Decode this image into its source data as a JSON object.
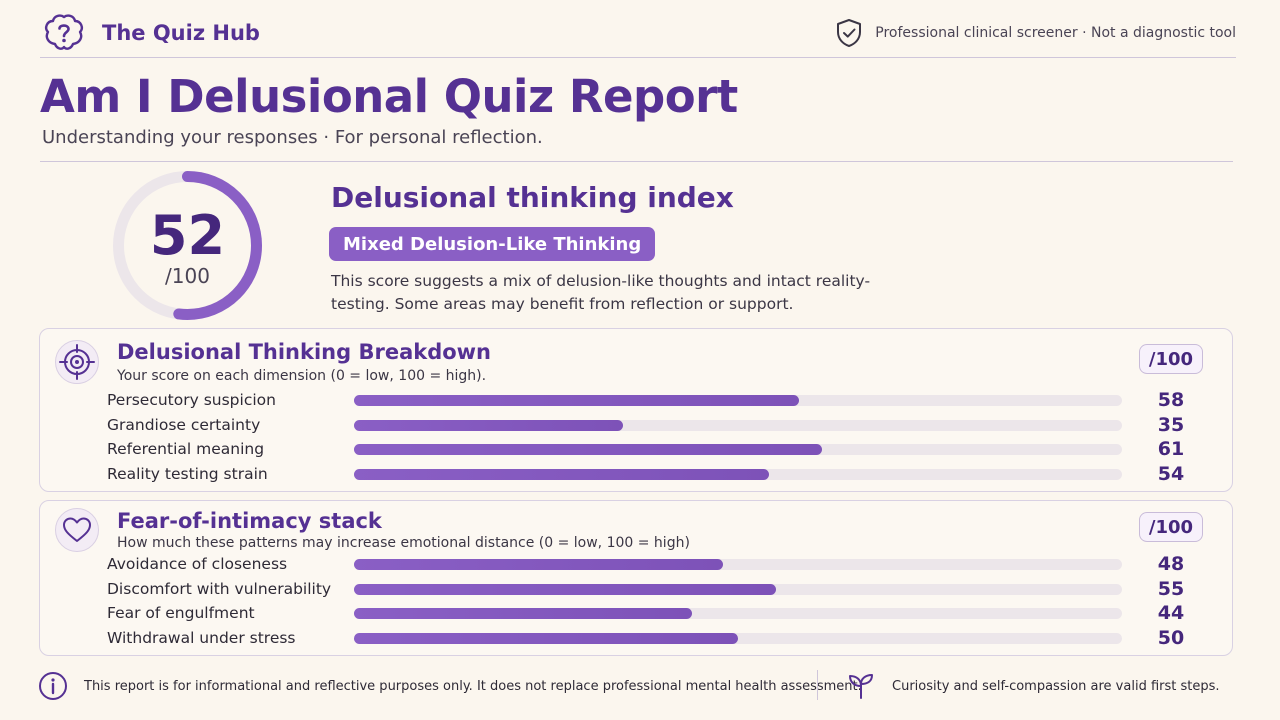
{
  "header": {
    "brand_name": "The Quiz Hub",
    "brand_icon": "brain-question-icon",
    "disclaimer": "Professional clinical screener · Not a diagnostic tool",
    "disclaimer_icon": "shield-check-icon"
  },
  "page": {
    "title": "Am I Delusional Quiz Report",
    "subtitle": "Understanding your responses · For personal reflection."
  },
  "summary": {
    "score": 52,
    "score_display": "52",
    "max_display": "/100",
    "index_title": "Delusional thinking index",
    "badge": "Mixed Delusion-Like Thinking",
    "description": "This score suggests a mix of delusion-like thoughts and intact reality-testing. Some areas may benefit from reflection or support."
  },
  "breakdown": {
    "icon": "target-icon",
    "title": "Delusional Thinking Breakdown",
    "subtitle": "Your score on each dimension (0 = low, 100 = high).",
    "scale": "/100",
    "rows": [
      {
        "label": "Persecutory suspicion",
        "value": 58,
        "value_display": "58"
      },
      {
        "label": "Grandiose certainty",
        "value": 35,
        "value_display": "35"
      },
      {
        "label": "Referential meaning",
        "value": 61,
        "value_display": "61"
      },
      {
        "label": "Reality testing strain",
        "value": 54,
        "value_display": "54"
      }
    ]
  },
  "intimacy": {
    "icon": "heart-icon",
    "title": "Fear-of-intimacy stack",
    "subtitle": "How much these patterns may increase emotional distance (0 = low, 100 = high)",
    "scale": "/100",
    "rows": [
      {
        "label": "Avoidance of closeness",
        "value": 48,
        "value_display": "48"
      },
      {
        "label": "Discomfort with vulnerability",
        "value": 55,
        "value_display": "55"
      },
      {
        "label": "Fear of engulfment",
        "value": 44,
        "value_display": "44"
      },
      {
        "label": "Withdrawal under stress",
        "value": 50,
        "value_display": "50"
      }
    ]
  },
  "footer": {
    "info_icon": "info-icon",
    "info_text": "This report is for informational and reflective purposes only. It does not replace professional mental health assessment.",
    "sprout_icon": "sprout-icon",
    "encouragement": "Curiosity and self-compassion are valid first steps."
  },
  "colors": {
    "accent": "#553193",
    "accent_dark": "#45277c",
    "bar_fill": "#8a5fc5",
    "bar_track": "#ece6ea",
    "background": "#fbf6ee"
  }
}
